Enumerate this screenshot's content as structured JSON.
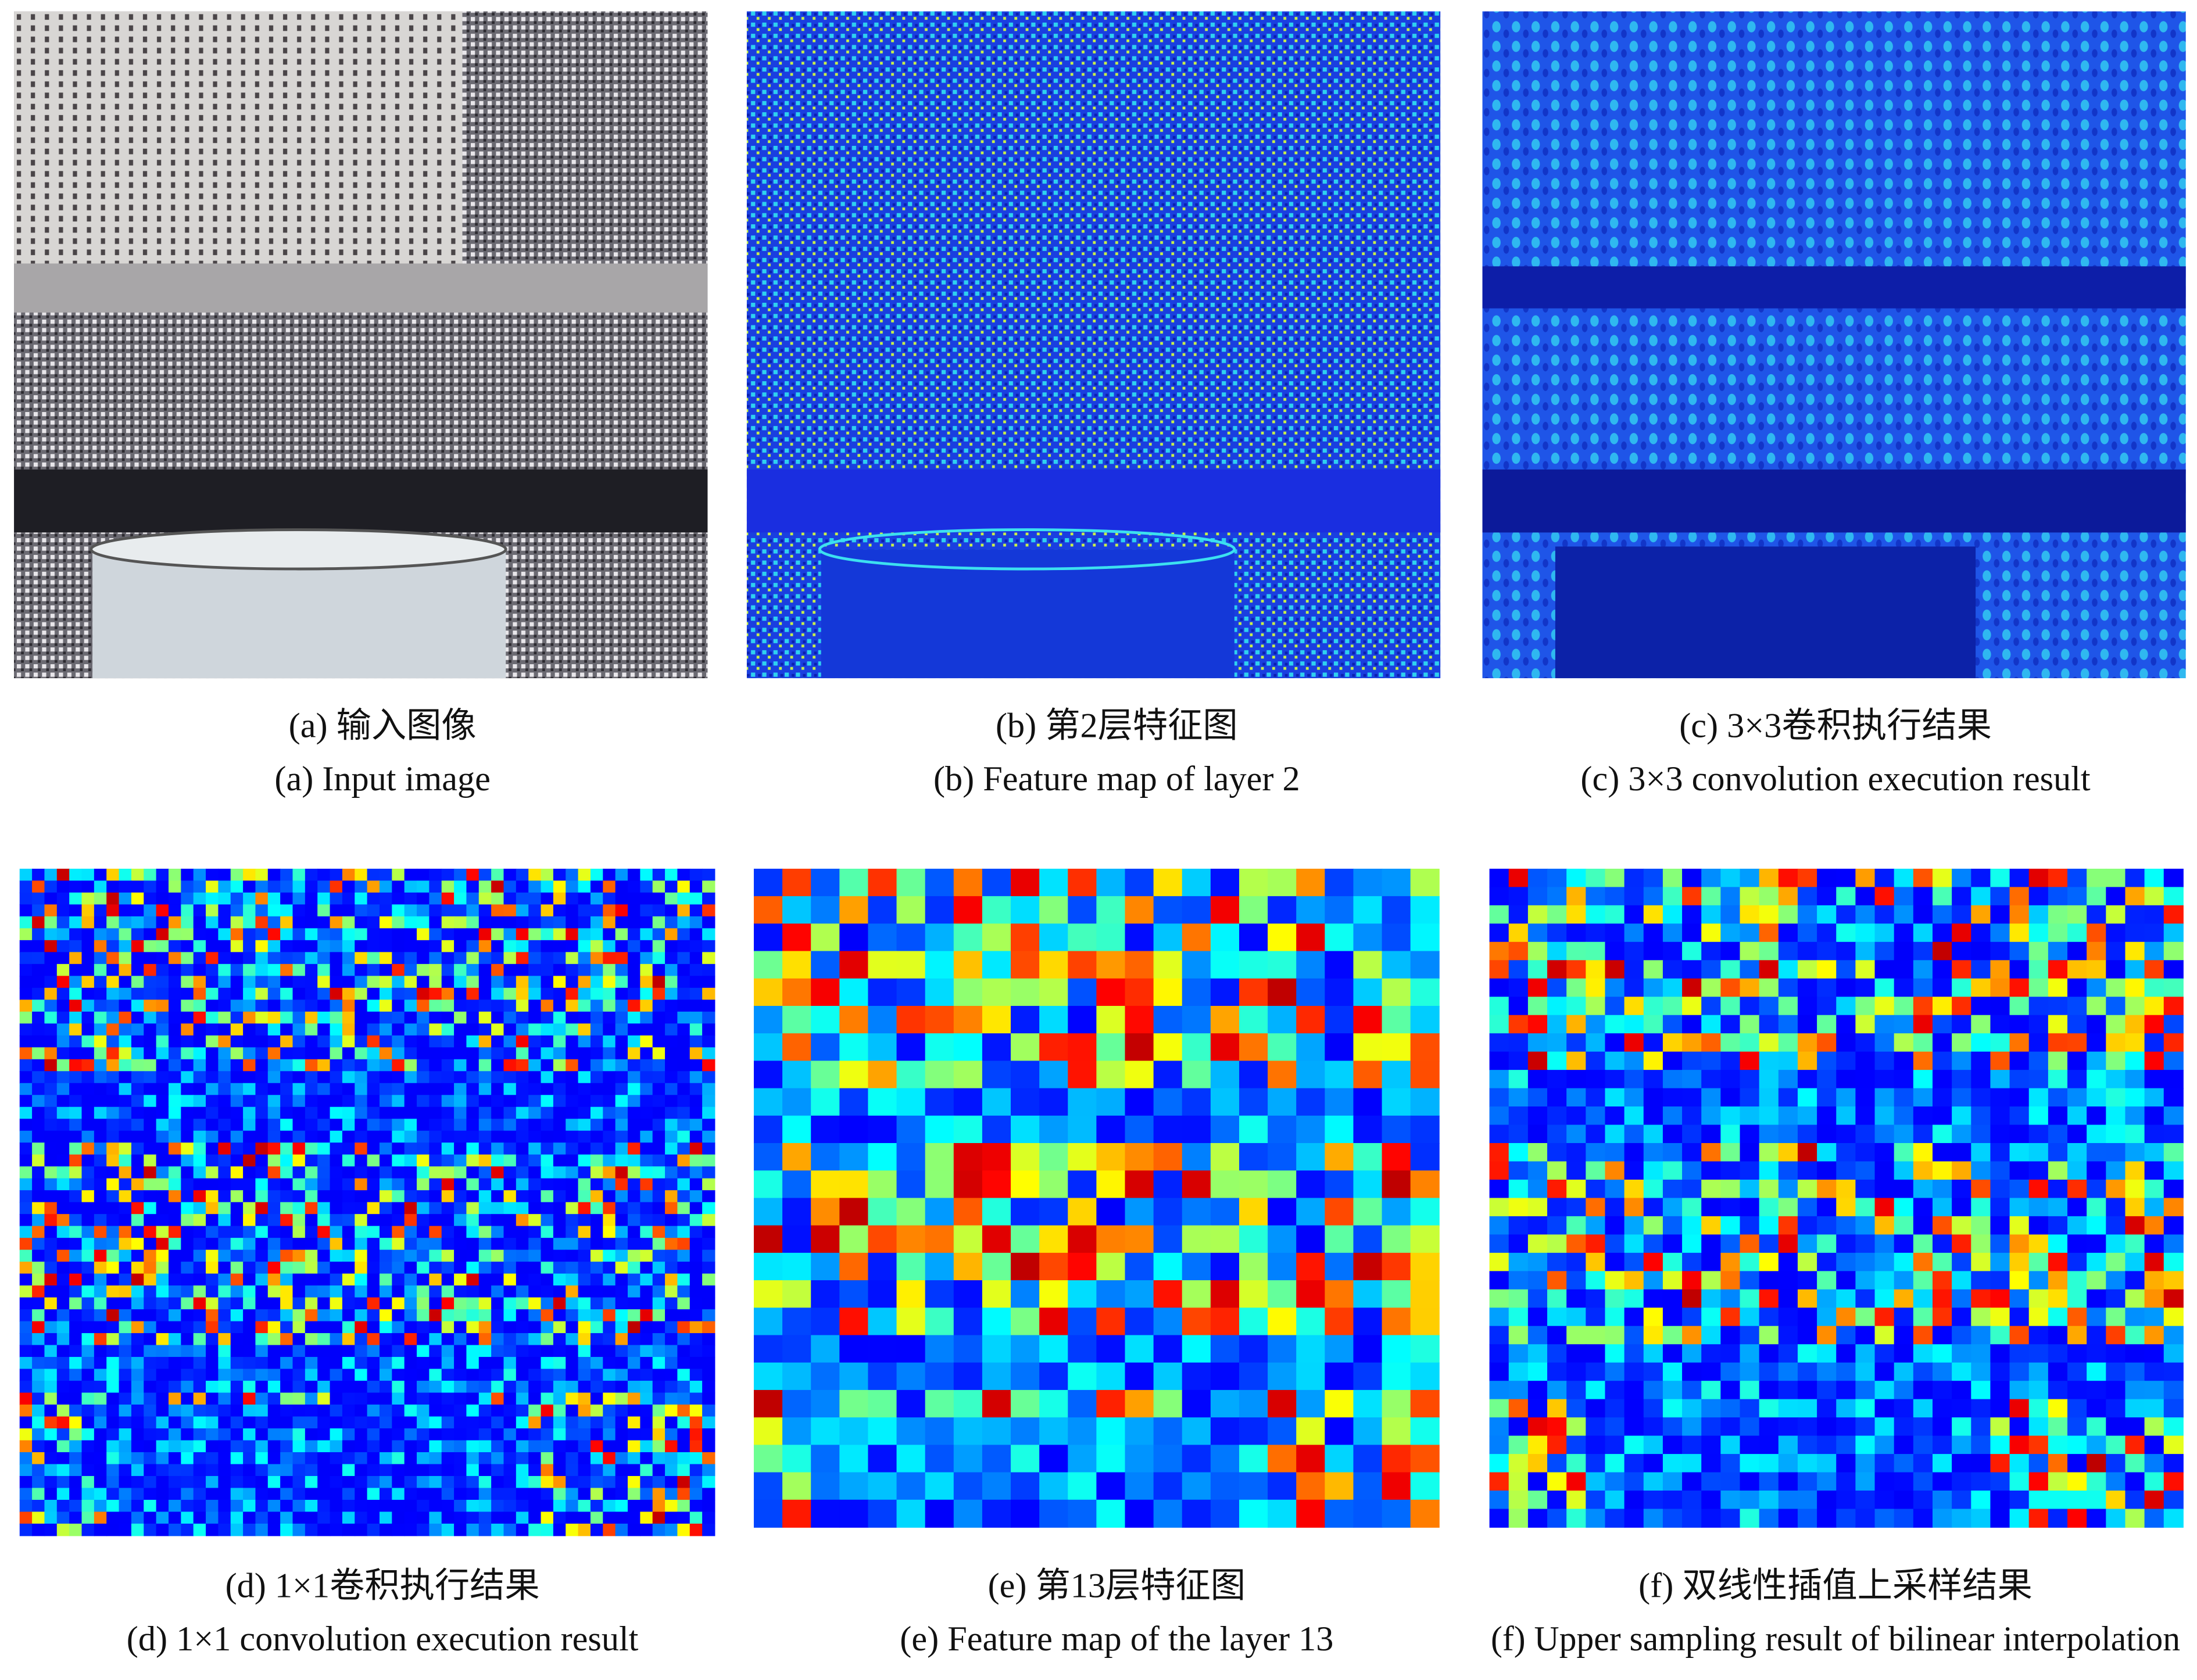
{
  "panels": [
    {
      "caption_zh": "(a) 输入图像",
      "caption_en": "(a) Input image"
    },
    {
      "caption_zh": "(b) 第2层特征图",
      "caption_en": "(b) Feature map of layer 2"
    },
    {
      "caption_zh": "(c) 3×3卷积执行结果",
      "caption_en": "(c) 3×3 convolution execution result"
    },
    {
      "caption_zh": "(d) 1×1卷积执行结果",
      "caption_en": "(d) 1×1 convolution execution result"
    },
    {
      "caption_zh": "(e) 第13层特征图",
      "caption_en": "(e) Feature map of the layer 13"
    },
    {
      "caption_zh": "(f) 双线性插值上采样结果",
      "caption_en": "(f) Upper sampling result of bilinear interpolation"
    }
  ]
}
